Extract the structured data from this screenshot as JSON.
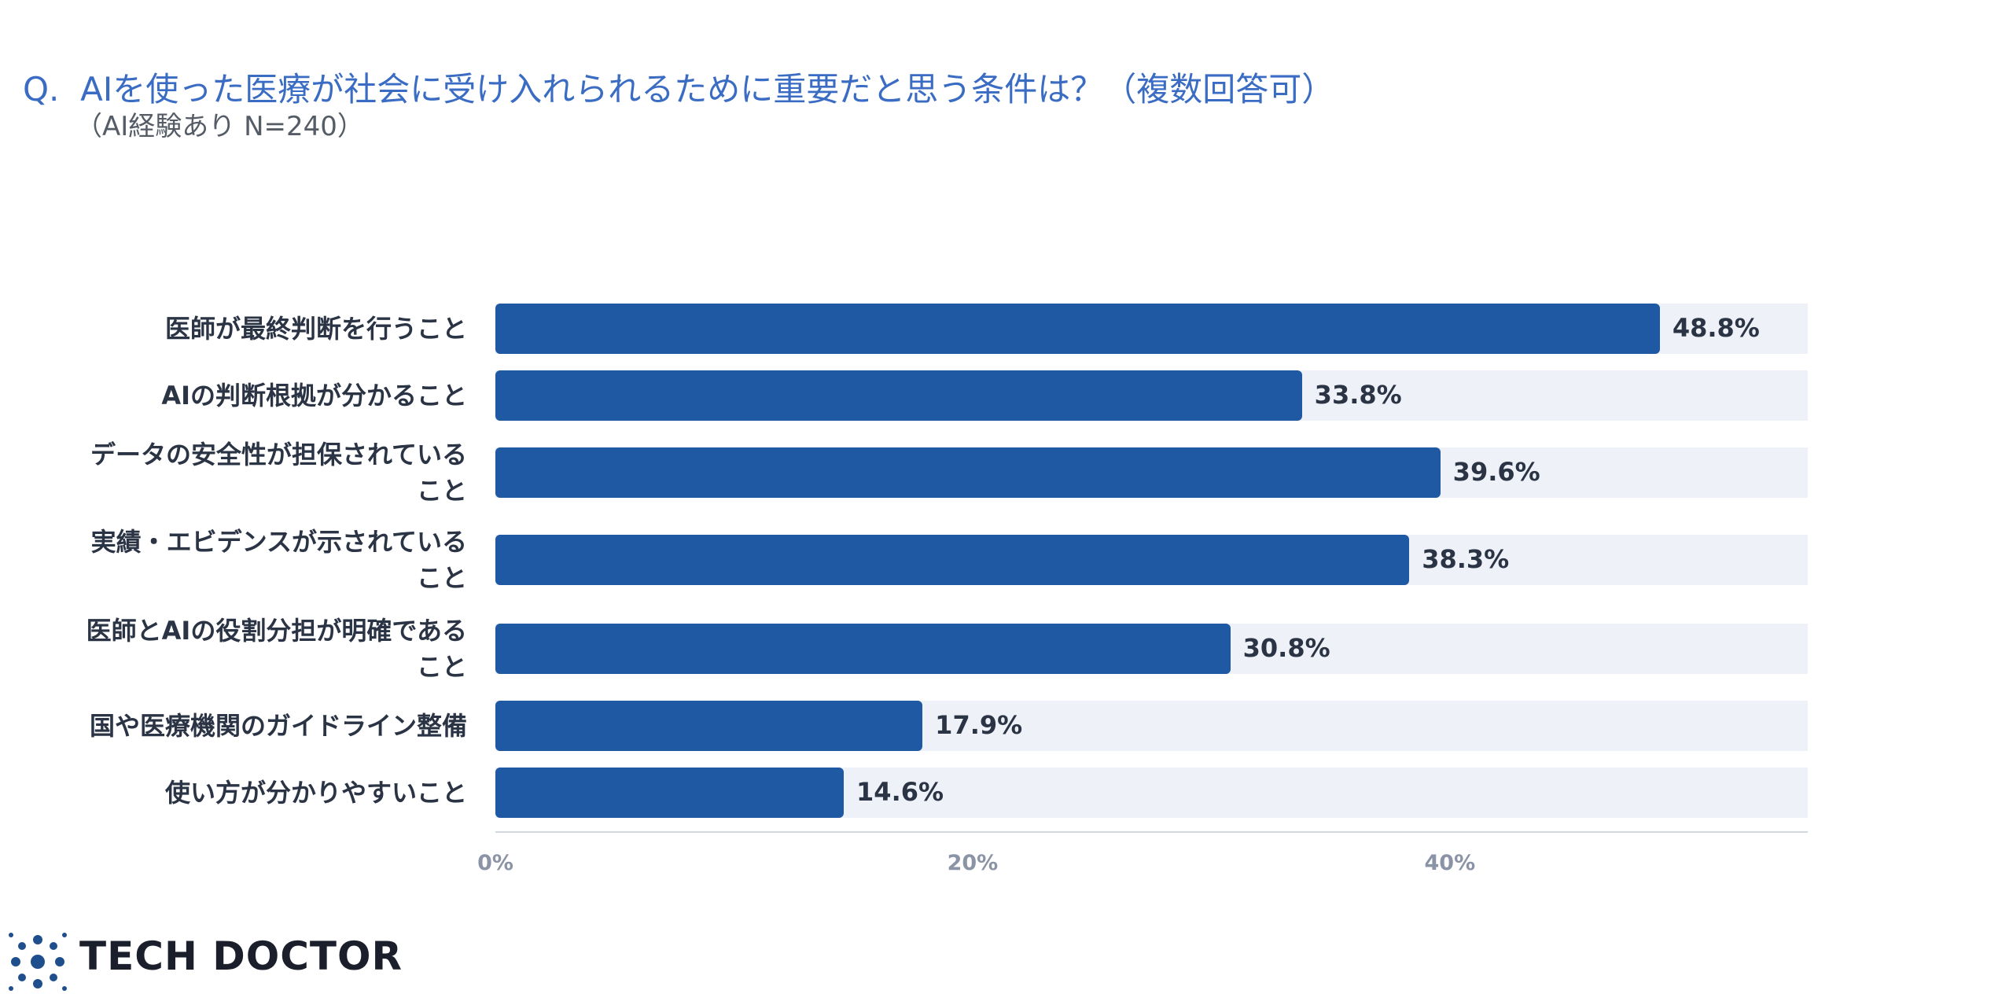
{
  "chart_data": {
    "type": "bar",
    "orientation": "horizontal",
    "title": "Q.  AIを使った医療が社会に受け入れられるために重要だと思う条件は？（複数回答可）",
    "subtitle": "（AI経験あり N=240）",
    "categories": [
      "医師が最終判断を行うこと",
      "AIの判断根拠が分かること",
      "データの安全性が担保されていること",
      "実績・エビデンスが示されていること",
      "医師とAIの役割分担が明確であること",
      "国や医療機関のガイドライン整備",
      "使い方が分かりやすいこと"
    ],
    "values": [
      48.8,
      33.8,
      39.6,
      38.3,
      30.8,
      17.9,
      14.6
    ],
    "value_labels": [
      "48.8%",
      "33.8%",
      "39.6%",
      "38.3%",
      "30.8%",
      "17.9%",
      "14.6%"
    ],
    "color": "#1f58a3",
    "xlim": [
      0,
      55
    ],
    "xticks": [
      {
        "value": 0,
        "label": "0%"
      },
      {
        "value": 20,
        "label": "20%"
      },
      {
        "value": 40,
        "label": "40%"
      }
    ]
  },
  "logo": "TECH DOCTOR"
}
